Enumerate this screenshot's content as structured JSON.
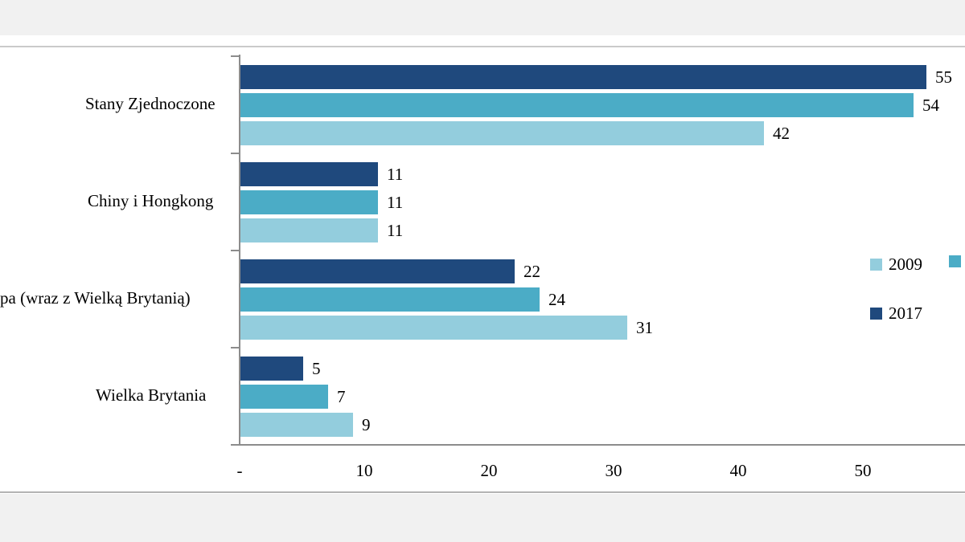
{
  "page": {
    "background": "#ffffff",
    "top_band_color": "#f1f1f1",
    "bottom_band_color": "#f1f1f1",
    "top_divider_color": "#cacaca",
    "bottom_divider_color": "#b3b3b3"
  },
  "chart_data": {
    "type": "bar",
    "orientation": "horizontal",
    "title": "",
    "xlabel": "",
    "ylabel": "",
    "categories": [
      "Stany Zjednoczone",
      "Chiny i Hongkong",
      "pa (wraz z Wielką Brytanią)",
      "Wielka Brytania"
    ],
    "category_label_clipped": [
      false,
      false,
      true,
      false
    ],
    "series": [
      {
        "name": "2017",
        "color": "#1F497D",
        "values": [
          55,
          11,
          22,
          5
        ]
      },
      {
        "name": "",
        "color": "#4BACC6",
        "values": [
          54,
          11,
          24,
          7
        ]
      },
      {
        "name": "2009",
        "color": "#93CDDD",
        "values": [
          42,
          11,
          31,
          9
        ]
      }
    ],
    "data_labels": [
      [
        55,
        11,
        22,
        5
      ],
      [
        54,
        11,
        24,
        7
      ],
      [
        42,
        11,
        31,
        9
      ]
    ],
    "x_ticks": [
      {
        "label": "-",
        "value": 0
      },
      {
        "label": "10",
        "value": 10
      },
      {
        "label": "20",
        "value": 20
      },
      {
        "label": "30",
        "value": 30
      },
      {
        "label": "40",
        "value": 40
      },
      {
        "label": "50",
        "value": 50
      }
    ],
    "xlim": [
      0,
      58
    ],
    "grid": false,
    "axis_color": "#8c8c8c",
    "text_color": "#000000",
    "legend": {
      "position": "right",
      "entries": [
        {
          "label": "2009",
          "color": "#93CDDD"
        },
        {
          "label": "",
          "color": "#4BACC6",
          "note": "swatch visible, label cut off at right image edge"
        },
        {
          "label": "2017",
          "color": "#1F497D"
        }
      ]
    }
  }
}
